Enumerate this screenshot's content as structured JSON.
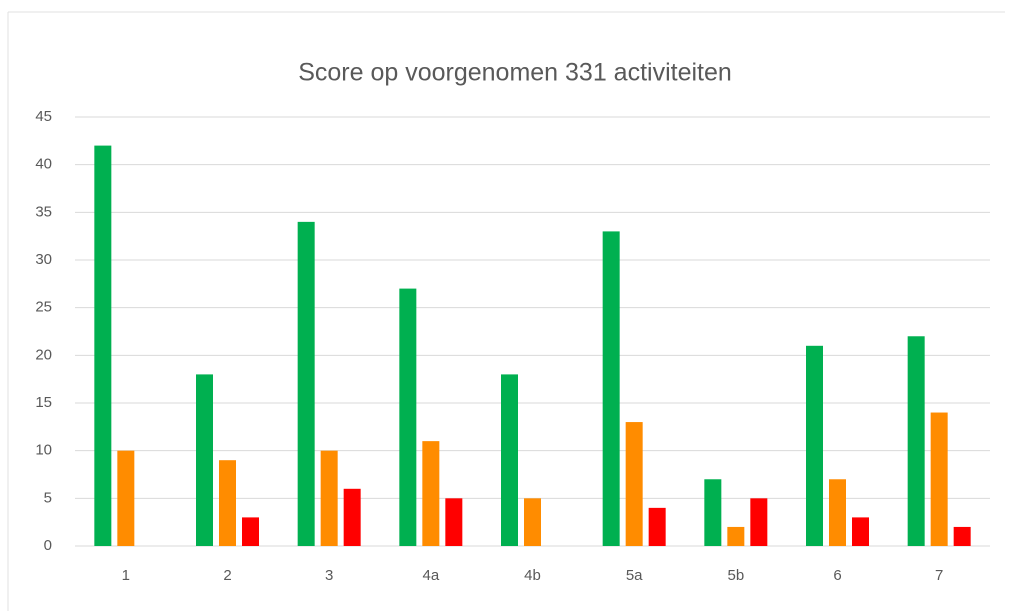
{
  "chart_data": {
    "type": "bar",
    "title": "Score op voorgenomen 331 activiteiten",
    "categories": [
      "1",
      "2",
      "3",
      "4a",
      "4b",
      "5a",
      "5b",
      "6",
      "7"
    ],
    "series": [
      {
        "color": "#00b050",
        "values": [
          42,
          18,
          34,
          27,
          18,
          33,
          7,
          21,
          22
        ]
      },
      {
        "color": "#ff8c00",
        "values": [
          10,
          9,
          10,
          11,
          5,
          13,
          2,
          7,
          14
        ]
      },
      {
        "color": "#ff0000",
        "values": [
          0,
          3,
          6,
          5,
          0,
          4,
          5,
          3,
          2
        ]
      }
    ],
    "ylim": [
      0,
      45
    ],
    "yticks": [
      0,
      5,
      10,
      15,
      20,
      25,
      30,
      35,
      40,
      45
    ],
    "grid": true
  }
}
